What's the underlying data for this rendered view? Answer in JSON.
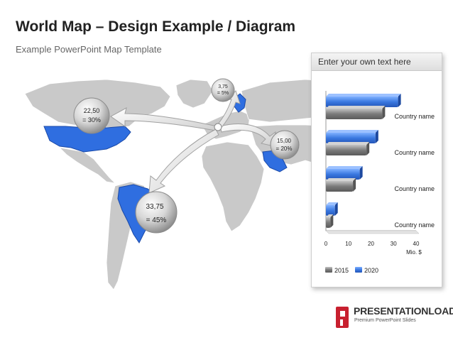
{
  "title": "World Map – Design Example / Diagram",
  "subtitle": "Example PowerPoint Map Template",
  "callouts": [
    {
      "id": "usa",
      "value": "22,50",
      "share": "= 30%"
    },
    {
      "id": "brazil",
      "value": "33,75",
      "share": "= 45%"
    },
    {
      "id": "saudi",
      "value": "15,00",
      "share": "= 20%"
    },
    {
      "id": "nordic",
      "value": "3,75",
      "share": "= 5%"
    }
  ],
  "panel": {
    "header": "Enter your own text here"
  },
  "chart_data": {
    "type": "bar",
    "orientation": "horizontal",
    "categories": [
      "Country name",
      "Country name",
      "Country name",
      "Country name"
    ],
    "series": [
      {
        "name": "2015",
        "values": [
          25,
          18,
          12,
          2
        ]
      },
      {
        "name": "2020",
        "values": [
          32,
          22,
          15,
          4
        ]
      }
    ],
    "xticks": [
      "0",
      "10",
      "20",
      "30",
      "40"
    ],
    "xlim": [
      0,
      40
    ],
    "xlabel": "Mio. $",
    "legend": "bottom",
    "colors": {
      "2015": "#7b7b7b",
      "2020": "#3a78e0"
    }
  },
  "logo": {
    "name": "PRESENTATIONLOAD",
    "tagline": "Premium PowerPoint Slides",
    "color": "#c8202f"
  }
}
